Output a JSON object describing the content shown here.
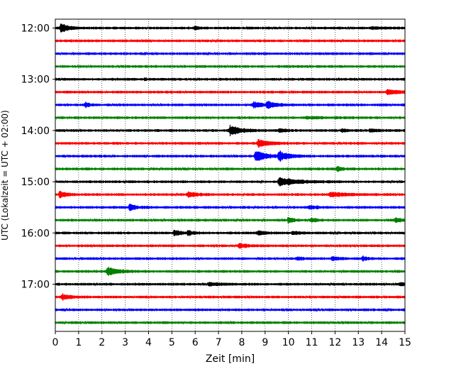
{
  "chart_data": {
    "type": "line",
    "subtype": "helicorder",
    "xlabel": "Zeit  [min]",
    "ylabel": "UTC (Lokalzeit = UTC + 02:00)",
    "xlim": [
      0,
      15
    ],
    "x_ticks": [
      "0",
      "1",
      "2",
      "3",
      "4",
      "5",
      "6",
      "7",
      "8",
      "9",
      "10",
      "11",
      "12",
      "13",
      "14",
      "15"
    ],
    "y_tick_labels": [
      "12:00",
      "13:00",
      "14:00",
      "15:00",
      "16:00",
      "17:00"
    ],
    "row_minutes": 15,
    "grid": "vertical dotted lines at every minute",
    "colors": [
      "#000000",
      "#ff0000",
      "#0000ff",
      "#008000"
    ],
    "rows": [
      {
        "start": "12:00",
        "color": "#000000",
        "events": [
          {
            "t": 0.25,
            "amp": 2.2,
            "dur": 0.5
          },
          {
            "t": 6.0,
            "amp": 0.7,
            "dur": 0.3
          },
          {
            "t": 13.6,
            "amp": 0.5,
            "dur": 0.8
          }
        ]
      },
      {
        "start": "12:15",
        "color": "#ff0000",
        "events": []
      },
      {
        "start": "12:30",
        "color": "#0000ff",
        "events": []
      },
      {
        "start": "12:45",
        "color": "#008000",
        "events": []
      },
      {
        "start": "13:00",
        "color": "#000000",
        "events": [
          {
            "t": 3.85,
            "amp": 0.6,
            "dur": 0.1
          }
        ]
      },
      {
        "start": "13:15",
        "color": "#ff0000",
        "events": [
          {
            "t": 14.25,
            "amp": 1.2,
            "dur": 0.7
          }
        ]
      },
      {
        "start": "13:30",
        "color": "#0000ff",
        "events": [
          {
            "t": 1.3,
            "amp": 1.2,
            "dur": 0.25
          },
          {
            "t": 8.5,
            "amp": 1.4,
            "dur": 0.6
          },
          {
            "t": 9.1,
            "amp": 1.6,
            "dur": 0.5
          }
        ]
      },
      {
        "start": "13:45",
        "color": "#008000",
        "events": [
          {
            "t": 10.8,
            "amp": 0.5,
            "dur": 1.2
          }
        ]
      },
      {
        "start": "14:00",
        "color": "#000000",
        "events": [
          {
            "t": 7.5,
            "amp": 2.4,
            "dur": 0.8
          },
          {
            "t": 9.6,
            "amp": 0.8,
            "dur": 0.5
          },
          {
            "t": 12.3,
            "amp": 0.6,
            "dur": 0.4
          },
          {
            "t": 13.5,
            "amp": 0.5,
            "dur": 1.0
          }
        ]
      },
      {
        "start": "14:15",
        "color": "#ff0000",
        "events": [
          {
            "t": 8.7,
            "amp": 1.8,
            "dur": 0.8
          }
        ]
      },
      {
        "start": "14:30",
        "color": "#0000ff",
        "events": [
          {
            "t": 8.6,
            "amp": 2.6,
            "dur": 0.8
          },
          {
            "t": 9.6,
            "amp": 2.2,
            "dur": 0.7
          }
        ]
      },
      {
        "start": "14:45",
        "color": "#008000",
        "events": [
          {
            "t": 12.1,
            "amp": 1.2,
            "dur": 0.3
          }
        ]
      },
      {
        "start": "15:00",
        "color": "#000000",
        "events": [
          {
            "t": 9.6,
            "amp": 2.0,
            "dur": 1.3
          }
        ]
      },
      {
        "start": "15:15",
        "color": "#ff0000",
        "events": [
          {
            "t": 0.2,
            "amp": 1.6,
            "dur": 0.5
          },
          {
            "t": 5.7,
            "amp": 1.0,
            "dur": 0.8
          },
          {
            "t": 11.8,
            "amp": 1.0,
            "dur": 1.2
          }
        ]
      },
      {
        "start": "15:30",
        "color": "#0000ff",
        "events": [
          {
            "t": 3.2,
            "amp": 1.6,
            "dur": 0.4
          },
          {
            "t": 10.9,
            "amp": 0.7,
            "dur": 0.6
          }
        ]
      },
      {
        "start": "15:45",
        "color": "#008000",
        "events": [
          {
            "t": 10.0,
            "amp": 1.2,
            "dur": 0.4
          },
          {
            "t": 11.0,
            "amp": 1.0,
            "dur": 0.4
          },
          {
            "t": 14.6,
            "amp": 1.0,
            "dur": 0.5
          }
        ]
      },
      {
        "start": "16:00",
        "color": "#000000",
        "events": [
          {
            "t": 5.1,
            "amp": 1.2,
            "dur": 0.5
          },
          {
            "t": 5.7,
            "amp": 1.2,
            "dur": 0.3
          },
          {
            "t": 8.7,
            "amp": 0.9,
            "dur": 0.5
          },
          {
            "t": 10.2,
            "amp": 0.8,
            "dur": 0.4
          }
        ]
      },
      {
        "start": "16:15",
        "color": "#ff0000",
        "events": [
          {
            "t": 7.9,
            "amp": 1.1,
            "dur": 0.6
          }
        ]
      },
      {
        "start": "16:30",
        "color": "#0000ff",
        "events": [
          {
            "t": 10.4,
            "amp": 0.9,
            "dur": 0.3
          },
          {
            "t": 11.9,
            "amp": 1.0,
            "dur": 0.4
          },
          {
            "t": 13.2,
            "amp": 1.0,
            "dur": 0.4
          }
        ]
      },
      {
        "start": "16:45",
        "color": "#008000",
        "events": [
          {
            "t": 2.25,
            "amp": 2.0,
            "dur": 0.7
          }
        ]
      },
      {
        "start": "17:00",
        "color": "#000000",
        "events": [
          {
            "t": 6.6,
            "amp": 0.7,
            "dur": 0.8
          },
          {
            "t": 14.8,
            "amp": 0.7,
            "dur": 0.4
          }
        ]
      },
      {
        "start": "17:15",
        "color": "#ff0000",
        "events": [
          {
            "t": 0.3,
            "amp": 1.3,
            "dur": 0.6
          }
        ]
      },
      {
        "start": "17:30",
        "color": "#0000ff",
        "events": []
      },
      {
        "start": "17:45",
        "color": "#008000",
        "events": []
      }
    ]
  }
}
